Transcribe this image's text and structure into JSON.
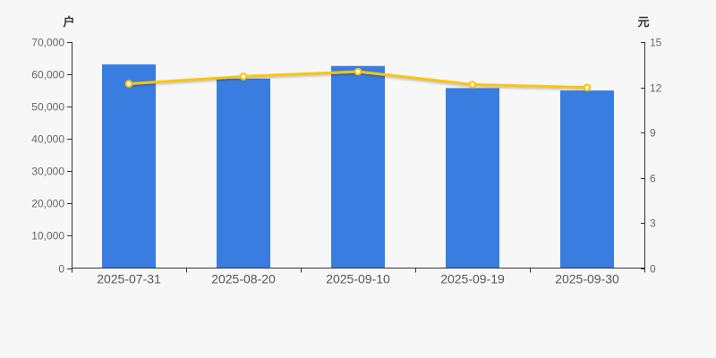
{
  "chart_data": {
    "type": "bar",
    "title": "",
    "categories": [
      "2025-07-31",
      "2025-08-20",
      "2025-09-10",
      "2025-09-19",
      "2025-09-30"
    ],
    "series": [
      {
        "name": "bar",
        "type": "bar",
        "yaxis": "left",
        "color": "#3A7DE0",
        "values": [
          63100,
          58700,
          62600,
          55750,
          55000
        ]
      },
      {
        "name": "line",
        "type": "line",
        "yaxis": "right",
        "color": "#FBC40D",
        "marker_fill": "#FFFFFF",
        "values": [
          12.23,
          12.72,
          13.04,
          12.18,
          11.98
        ]
      }
    ],
    "left_axis": {
      "label": "户",
      "min": 0,
      "max": 70000,
      "step": 10000,
      "tick_labels": [
        "0",
        "10,000",
        "20,000",
        "30,000",
        "40,000",
        "50,000",
        "60,000",
        "70,000"
      ]
    },
    "right_axis": {
      "label": "元",
      "min": 0,
      "max": 15,
      "step": 3,
      "tick_labels": [
        "0",
        "3",
        "6",
        "9",
        "12",
        "15"
      ]
    },
    "grid": false,
    "legend": false,
    "background": "#F7F7F8",
    "axis_color": "#333333",
    "tick_label_color": "#666666",
    "date_label_color": "#555555"
  }
}
